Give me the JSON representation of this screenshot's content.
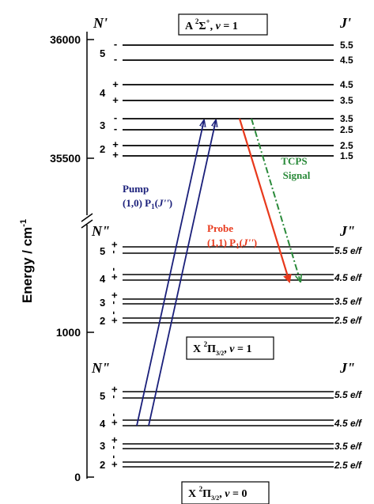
{
  "axis": {
    "ylabel": "Energy / cm",
    "ylabel_exp": "-1",
    "ticks": [
      {
        "label": "36000",
        "value": 36000
      },
      {
        "label": "35500",
        "value": 35500
      },
      {
        "label": "1000",
        "value": 1000
      },
      {
        "label": "0",
        "value": 0
      }
    ]
  },
  "states": {
    "upper": {
      "parts": [
        "A ",
        "2",
        "Σ",
        "+",
        ", ",
        "v",
        " = 1"
      ],
      "n_head": "N'",
      "j_head": "J'"
    },
    "middle": {
      "parts": [
        "X ",
        "2",
        "Π",
        "3/2",
        ", ",
        "v",
        " = 1"
      ],
      "n_head": "N\"",
      "j_head": "J\""
    },
    "lower": {
      "parts": [
        "X ",
        "2",
        "Π",
        "3/2",
        ", ",
        "v",
        " = 0"
      ],
      "n_head": "N\"",
      "j_head": "J\""
    }
  },
  "upper_levels": [
    {
      "n": "5",
      "parity": "-",
      "j": "5.5"
    },
    {
      "parity": "-",
      "j": "4.5"
    },
    {
      "n": "4",
      "parity": "+",
      "j": "4.5"
    },
    {
      "parity": "+",
      "j": "3.5"
    },
    {
      "n": "3",
      "parity": "-",
      "j": "3.5"
    },
    {
      "parity": "-",
      "j": "2.5"
    },
    {
      "n": "2",
      "parity": "+",
      "j": "2.5"
    },
    {
      "parity": "+",
      "j": "1.5"
    }
  ],
  "middle_levels": [
    {
      "n": "5",
      "parity": "+ -",
      "j": "5.5 e/f"
    },
    {
      "n": "4",
      "parity": "- +",
      "j": "4.5 e/f"
    },
    {
      "n": "3",
      "parity": "+ -",
      "j": "3.5 e/f"
    },
    {
      "n": "2",
      "parity": "- +",
      "j": "2.5 e/f"
    }
  ],
  "lower_levels": [
    {
      "n": "5",
      "parity": "+ -",
      "j": "5.5 e/f"
    },
    {
      "n": "4",
      "parity": "- +",
      "j": "4.5 e/f"
    },
    {
      "n": "3",
      "parity": "+ -",
      "j": "3.5 e/f"
    },
    {
      "n": "2",
      "parity": "- +",
      "j": "2.5 e/f"
    }
  ],
  "transitions": {
    "pump": {
      "line1": "Pump",
      "line2a": "(1,0) P",
      "line2sub": "1",
      "line2b": "(",
      "line2j": "J''",
      "line2c": ")",
      "color": "#1a1f7a"
    },
    "probe": {
      "line1": "Probe",
      "line2a": "(1,1) P",
      "line2sub": "1",
      "line2b": "(",
      "line2j": "J''",
      "line2c": ")",
      "color": "#e8391c"
    },
    "signal": {
      "line1": "TCPS",
      "line2": "Signal",
      "color": "#2a8a3a"
    }
  }
}
